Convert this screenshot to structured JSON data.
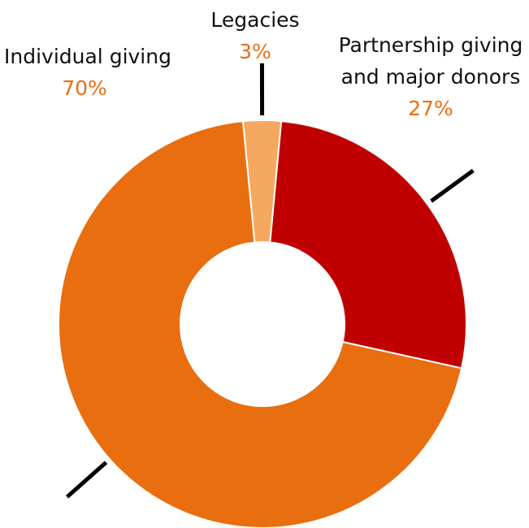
{
  "chart_data": {
    "type": "pie",
    "donut": true,
    "start_slice": "Legacies",
    "slices": [
      {
        "label": "Legacies",
        "label_lines": [
          "Legacies"
        ],
        "value": 3,
        "value_label": "3%",
        "color": "#F5A85F"
      },
      {
        "label": "Partnership giving and major donors",
        "label_lines": [
          "Partnership giving",
          "and major donors"
        ],
        "value": 27,
        "value_label": "27%",
        "color": "#C00000"
      },
      {
        "label": "Individual giving",
        "label_lines": [
          "Individual giving"
        ],
        "value": 70,
        "value_label": "70%",
        "color": "#E96E10"
      }
    ],
    "percent_label_color": "#E96E10",
    "leader_color": "#000000"
  }
}
